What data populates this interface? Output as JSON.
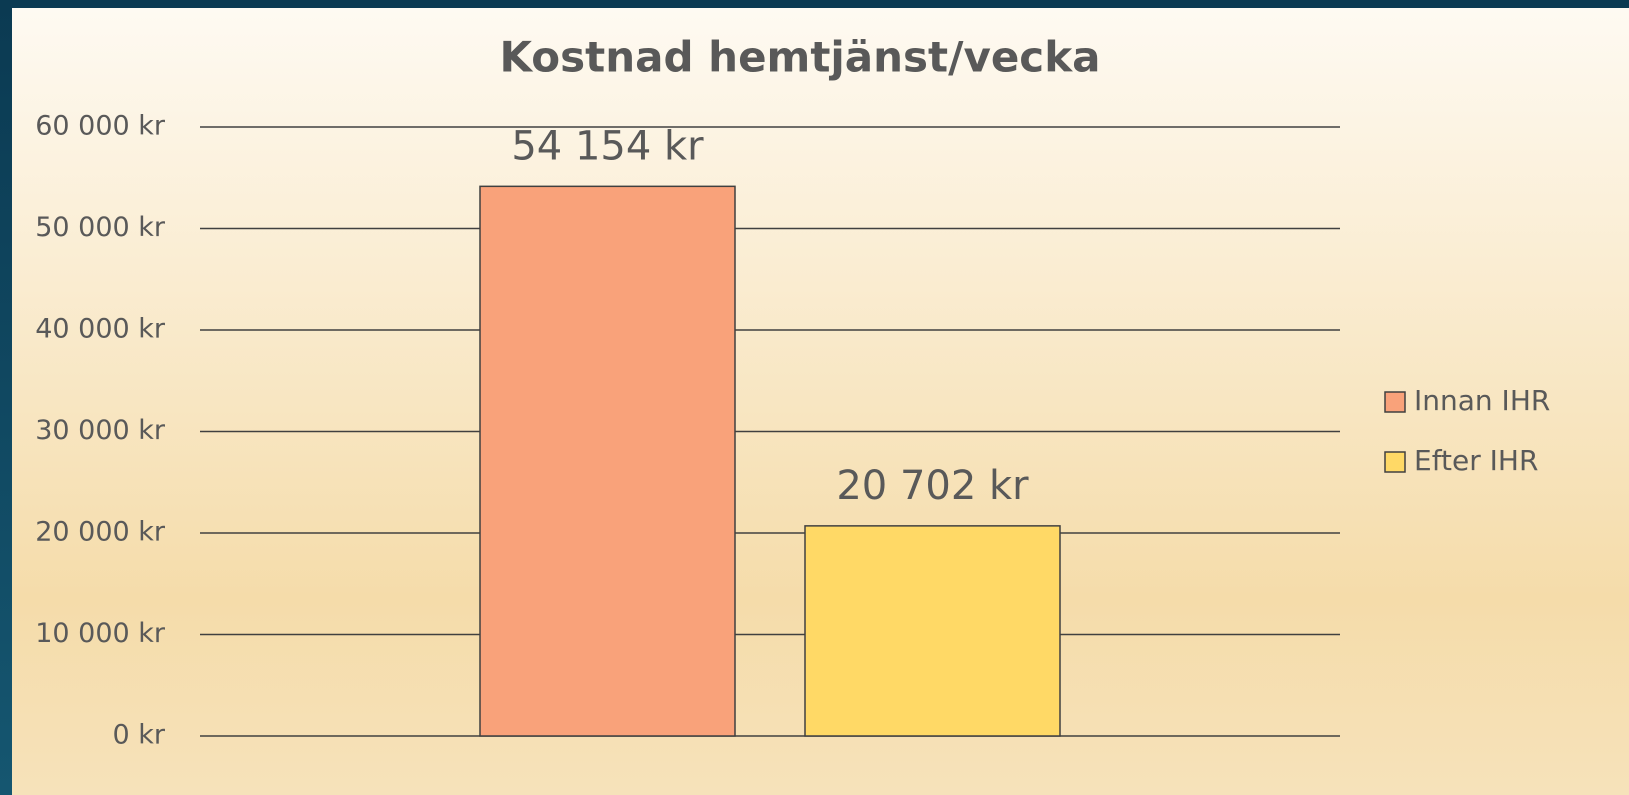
{
  "chart_data": {
    "type": "bar",
    "title": "Kostnad hemtjänst/vecka",
    "categories": [
      null
    ],
    "series": [
      {
        "name": "Innan IHR",
        "color": "#f9a27a",
        "values": [
          54154
        ],
        "value_labels": [
          "54 154 kr"
        ]
      },
      {
        "name": "Efter IHR",
        "color": "#ffd966",
        "values": [
          20702
        ],
        "value_labels": [
          "20 702 kr"
        ]
      }
    ],
    "ylim": [
      0,
      60000
    ],
    "yticks": [
      {
        "value": 0,
        "label": "0 kr"
      },
      {
        "value": 10000,
        "label": "10 000 kr"
      },
      {
        "value": 20000,
        "label": "20 000 kr"
      },
      {
        "value": 30000,
        "label": "30 000 kr"
      },
      {
        "value": 40000,
        "label": "40 000 kr"
      },
      {
        "value": 50000,
        "label": "50 000 kr"
      },
      {
        "value": 60000,
        "label": "60 000 kr"
      }
    ],
    "grid": true,
    "legend": "right"
  }
}
